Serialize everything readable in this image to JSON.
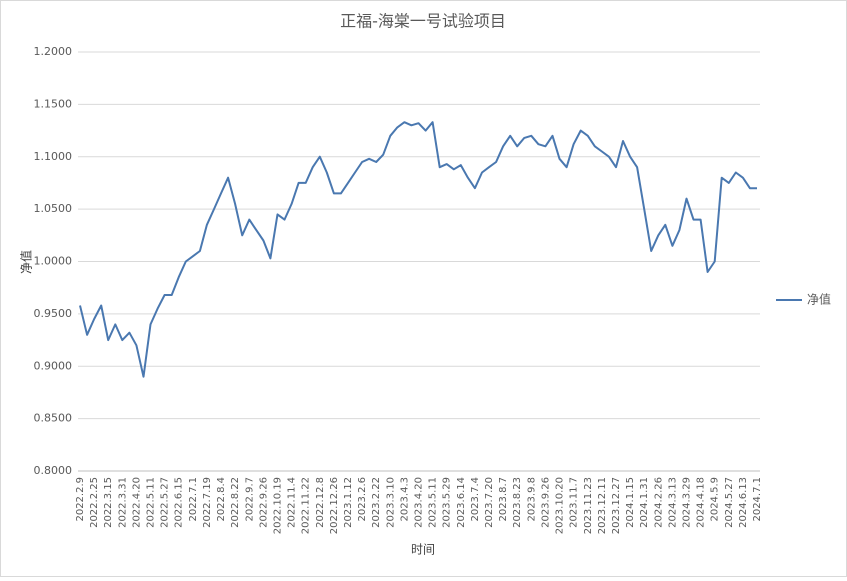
{
  "chart_data": {
    "type": "line",
    "title": "正福-海棠一号试验项目",
    "x_label": "时间",
    "y_label": "净值",
    "categories": [
      "2022.2.9",
      null,
      "2022.2.25",
      null,
      "2022.3.15",
      null,
      "2022.3.31",
      null,
      "2022.4.20",
      null,
      "2022.5.11",
      null,
      "2022.5.27",
      null,
      "2022.6.15",
      null,
      "2022.7.1",
      null,
      "2022.7.19",
      null,
      "2022.8.4",
      null,
      "2022.8.22",
      null,
      "2022.9.7",
      null,
      "2022.9.26",
      null,
      "2022.10.19",
      null,
      "2022.11.4",
      null,
      "2022.11.22",
      null,
      "2022.12.8",
      null,
      "2022.12.26",
      null,
      "2023.1.12",
      null,
      "2023.2.6",
      null,
      "2023.2.22",
      null,
      "2023.3.10",
      null,
      "2023.4.3",
      null,
      "2023.4.20",
      null,
      "2023.5.11",
      null,
      "2023.5.29",
      null,
      "2023.6.14",
      null,
      "2023.7.4",
      null,
      "2023.7.20",
      null,
      "2023.8.7",
      null,
      "2023.8.23",
      null,
      "2023.9.8",
      null,
      "2023.9.26",
      null,
      "2023.10.20",
      null,
      "2023.11.7",
      null,
      "2023.11.23",
      null,
      "2023.12.11",
      null,
      "2023.12.27",
      null,
      "2024.1.15",
      null,
      "2024.1.31",
      null,
      "2024.2.26",
      null,
      "2024.3.13",
      null,
      "2024.3.29",
      null,
      "2024.4.18",
      null,
      "2024.5.9",
      null,
      "2024.5.27",
      null,
      "2024.6.13",
      null,
      "2024.7.1"
    ],
    "series": [
      {
        "name": "净值",
        "color": "#4a78b0",
        "values": [
          0.958,
          0.93,
          0.945,
          0.958,
          0.925,
          0.94,
          0.925,
          0.932,
          0.92,
          0.89,
          0.94,
          0.955,
          0.968,
          0.968,
          0.985,
          1.0,
          1.005,
          1.01,
          1.035,
          1.05,
          1.065,
          1.08,
          1.055,
          1.025,
          1.04,
          1.03,
          1.02,
          1.003,
          1.045,
          1.04,
          1.055,
          1.075,
          1.075,
          1.09,
          1.1,
          1.085,
          1.065,
          1.065,
          1.075,
          1.085,
          1.095,
          1.098,
          1.095,
          1.102,
          1.12,
          1.128,
          1.133,
          1.13,
          1.132,
          1.125,
          1.133,
          1.09,
          1.093,
          1.088,
          1.092,
          1.08,
          1.07,
          1.085,
          1.09,
          1.095,
          1.11,
          1.12,
          1.11,
          1.118,
          1.12,
          1.112,
          1.11,
          1.12,
          1.098,
          1.09,
          1.112,
          1.125,
          1.12,
          1.11,
          1.105,
          1.1,
          1.09,
          1.115,
          1.1,
          1.09,
          1.05,
          1.01,
          1.025,
          1.035,
          1.015,
          1.03,
          1.06,
          1.04,
          1.04,
          0.99,
          1.0,
          1.08,
          1.075,
          1.085,
          1.08,
          1.07,
          1.07
        ]
      }
    ],
    "ylim": [
      0.8,
      1.2
    ],
    "yticks": [
      {
        "value": 0.8,
        "label": "0.8000"
      },
      {
        "value": 0.85,
        "label": "0.8500"
      },
      {
        "value": 0.9,
        "label": "0.9000"
      },
      {
        "value": 0.95,
        "label": "0.9500"
      },
      {
        "value": 1.0,
        "label": "1.0000"
      },
      {
        "value": 1.05,
        "label": "1.0500"
      },
      {
        "value": 1.1,
        "label": "1.1000"
      },
      {
        "value": 1.15,
        "label": "1.1500"
      },
      {
        "value": 1.2,
        "label": "1.2000"
      }
    ],
    "grid": true,
    "legend": "right"
  }
}
